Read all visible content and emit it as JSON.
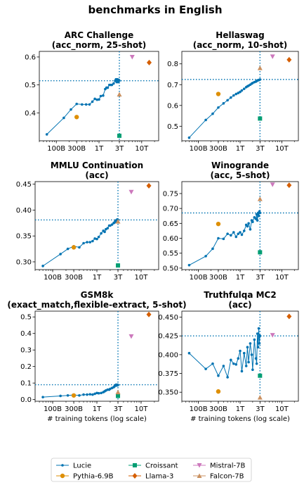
{
  "figure": {
    "title": "benchmarks in English",
    "xlabel": "# training tokens (log scale)",
    "x_ticks": [
      {
        "value": 100000000000.0,
        "label": "100B"
      },
      {
        "value": 300000000000.0,
        "label": "300B"
      },
      {
        "value": 1000000000000.0,
        "label": "1T"
      },
      {
        "value": 3000000000000.0,
        "label": "3T"
      },
      {
        "value": 10000000000000.0,
        "label": "10T"
      }
    ],
    "xlim": [
      40000000000.0,
      25000000000000.0
    ],
    "x_scale": "log",
    "reference_x": 3000000000000.0,
    "legend": {
      "placement": "bottom-center",
      "entries": [
        {
          "name": "Lucie",
          "color": "#0173b2",
          "marker": "dot-line"
        },
        {
          "name": "Pythia-6.9B",
          "color": "#de8f05",
          "marker": "circle"
        },
        {
          "name": "Croissant",
          "color": "#029e73",
          "marker": "square"
        },
        {
          "name": "Llama-3",
          "color": "#d55e00",
          "marker": "diamond"
        },
        {
          "name": "Mistral-7B",
          "color": "#cc78bc",
          "marker": "triangle-down"
        },
        {
          "name": "Falcon-7B",
          "color": "#ca9161",
          "marker": "triangle-up"
        }
      ]
    }
  },
  "chart_data": [
    {
      "type": "line",
      "title_lines": [
        "ARC Challenge",
        "(acc_norm, 25-shot)"
      ],
      "ylim": [
        0.3,
        0.62
      ],
      "yticks": [
        0.4,
        0.5,
        0.6
      ],
      "ytick_labels": [
        "0.4",
        "0.5",
        "0.6"
      ],
      "grid": false,
      "lucie": {
        "x": [
          60000000000.0,
          150000000000.0,
          220000000000.0,
          300000000000.0,
          400000000000.0,
          500000000000.0,
          600000000000.0,
          700000000000.0,
          800000000000.0,
          900000000000.0,
          1000000000000.0,
          1100000000000.0,
          1250000000000.0,
          1400000000000.0,
          1500000000000.0,
          1600000000000.0,
          1750000000000.0,
          1900000000000.0,
          2000000000000.0,
          2200000000000.0,
          2400000000000.0,
          2500000000000.0,
          2600000000000.0,
          2700000000000.0,
          2800000000000.0,
          2900000000000.0,
          3000000000000.0
        ],
        "y": [
          0.323,
          0.382,
          0.412,
          0.432,
          0.43,
          0.43,
          0.43,
          0.44,
          0.45,
          0.447,
          0.448,
          0.46,
          0.462,
          0.485,
          0.49,
          0.49,
          0.5,
          0.5,
          0.5,
          0.505,
          0.515,
          0.52,
          0.51,
          0.52,
          0.51,
          0.518,
          0.515
        ]
      },
      "reference_y": 0.515,
      "others": [
        {
          "name": "Pythia-6.9B",
          "x": 300000000000.0,
          "y": 0.385
        },
        {
          "name": "Croissant",
          "x": 3000000000000.0,
          "y": 0.318
        },
        {
          "name": "Llama-3",
          "x": 15000000000000.0,
          "y": 0.58
        },
        {
          "name": "Mistral-7B",
          "x": 6000000000000.0,
          "y": 0.6
        },
        {
          "name": "Falcon-7B",
          "x": 3000000000000.0,
          "y": 0.466
        }
      ]
    },
    {
      "type": "line",
      "title_lines": [
        "Hellaswag",
        "(acc_norm, 10-shot)"
      ],
      "ylim": [
        0.43,
        0.86
      ],
      "yticks": [
        0.5,
        0.6,
        0.7,
        0.8
      ],
      "ytick_labels": [
        "0.5",
        "0.6",
        "0.7",
        "0.8"
      ],
      "grid": false,
      "lucie": {
        "x": [
          60000000000.0,
          150000000000.0,
          220000000000.0,
          300000000000.0,
          400000000000.0,
          500000000000.0,
          600000000000.0,
          700000000000.0,
          800000000000.0,
          900000000000.0,
          1000000000000.0,
          1100000000000.0,
          1250000000000.0,
          1400000000000.0,
          1500000000000.0,
          1600000000000.0,
          1750000000000.0,
          1900000000000.0,
          2000000000000.0,
          2200000000000.0,
          2400000000000.0,
          2500000000000.0,
          2600000000000.0,
          2700000000000.0,
          2800000000000.0,
          2900000000000.0,
          3000000000000.0
        ],
        "y": [
          0.445,
          0.53,
          0.56,
          0.59,
          0.61,
          0.625,
          0.638,
          0.648,
          0.655,
          0.66,
          0.665,
          0.672,
          0.68,
          0.688,
          0.692,
          0.695,
          0.7,
          0.705,
          0.708,
          0.712,
          0.715,
          0.718,
          0.72,
          0.721,
          0.722,
          0.723,
          0.725
        ]
      },
      "reference_y": 0.725,
      "others": [
        {
          "name": "Pythia-6.9B",
          "x": 300000000000.0,
          "y": 0.655
        },
        {
          "name": "Croissant",
          "x": 3000000000000.0,
          "y": 0.537
        },
        {
          "name": "Llama-3",
          "x": 15000000000000.0,
          "y": 0.82
        },
        {
          "name": "Mistral-7B",
          "x": 6000000000000.0,
          "y": 0.835
        },
        {
          "name": "Falcon-7B",
          "x": 3000000000000.0,
          "y": 0.78
        }
      ]
    },
    {
      "type": "line",
      "title_lines": [
        "MMLU Continuation",
        "(acc)"
      ],
      "ylim": [
        0.285,
        0.455
      ],
      "yticks": [
        0.3,
        0.35,
        0.4,
        0.45
      ],
      "ytick_labels": [
        "0.30",
        "0.35",
        "0.40",
        "0.45"
      ],
      "grid": false,
      "lucie": {
        "x": [
          60000000000.0,
          150000000000.0,
          220000000000.0,
          300000000000.0,
          400000000000.0,
          500000000000.0,
          600000000000.0,
          700000000000.0,
          800000000000.0,
          900000000000.0,
          1000000000000.0,
          1100000000000.0,
          1250000000000.0,
          1400000000000.0,
          1500000000000.0,
          1600000000000.0,
          1750000000000.0,
          1900000000000.0,
          2000000000000.0,
          2200000000000.0,
          2400000000000.0,
          2500000000000.0,
          2600000000000.0,
          2700000000000.0,
          2800000000000.0,
          2900000000000.0,
          3000000000000.0
        ],
        "y": [
          0.292,
          0.315,
          0.325,
          0.33,
          0.328,
          0.336,
          0.338,
          0.338,
          0.34,
          0.345,
          0.344,
          0.348,
          0.355,
          0.36,
          0.358,
          0.363,
          0.365,
          0.37,
          0.37,
          0.372,
          0.375,
          0.376,
          0.378,
          0.38,
          0.378,
          0.382,
          0.381
        ]
      },
      "reference_y": 0.381,
      "others": [
        {
          "name": "Pythia-6.9B",
          "x": 300000000000.0,
          "y": 0.328
        },
        {
          "name": "Croissant",
          "x": 3000000000000.0,
          "y": 0.293
        },
        {
          "name": "Llama-3",
          "x": 15000000000000.0,
          "y": 0.447
        },
        {
          "name": "Mistral-7B",
          "x": 6000000000000.0,
          "y": 0.435
        },
        {
          "name": "Falcon-7B",
          "x": 3000000000000.0,
          "y": 0.378
        }
      ]
    },
    {
      "type": "line",
      "title_lines": [
        "Winogrande",
        "(acc, 5-shot)"
      ],
      "ylim": [
        0.495,
        0.79
      ],
      "yticks": [
        0.5,
        0.55,
        0.6,
        0.65,
        0.7,
        0.75
      ],
      "ytick_labels": [
        "0.50",
        "0.55",
        "0.60",
        "0.65",
        "0.70",
        "0.75"
      ],
      "grid": false,
      "lucie": {
        "x": [
          60000000000.0,
          150000000000.0,
          220000000000.0,
          300000000000.0,
          400000000000.0,
          500000000000.0,
          600000000000.0,
          700000000000.0,
          800000000000.0,
          900000000000.0,
          1000000000000.0,
          1100000000000.0,
          1250000000000.0,
          1400000000000.0,
          1500000000000.0,
          1600000000000.0,
          1750000000000.0,
          1900000000000.0,
          2000000000000.0,
          2200000000000.0,
          2400000000000.0,
          2500000000000.0,
          2600000000000.0,
          2700000000000.0,
          2800000000000.0,
          2900000000000.0,
          3000000000000.0
        ],
        "y": [
          0.51,
          0.54,
          0.565,
          0.6,
          0.598,
          0.615,
          0.61,
          0.62,
          0.605,
          0.615,
          0.62,
          0.612,
          0.625,
          0.645,
          0.64,
          0.65,
          0.63,
          0.66,
          0.655,
          0.67,
          0.665,
          0.68,
          0.66,
          0.685,
          0.675,
          0.69,
          0.685
        ]
      },
      "reference_y": 0.685,
      "others": [
        {
          "name": "Pythia-6.9B",
          "x": 300000000000.0,
          "y": 0.648
        },
        {
          "name": "Croissant",
          "x": 3000000000000.0,
          "y": 0.553
        },
        {
          "name": "Llama-3",
          "x": 15000000000000.0,
          "y": 0.778
        },
        {
          "name": "Mistral-7B",
          "x": 6000000000000.0,
          "y": 0.78
        },
        {
          "name": "Falcon-7B",
          "x": 3000000000000.0,
          "y": 0.732
        }
      ]
    },
    {
      "type": "line",
      "title_lines": [
        "GSM8k",
        "(exact_match,flexible-extract, 5-shot)"
      ],
      "ylim": [
        -0.01,
        0.535
      ],
      "yticks": [
        0.0,
        0.1,
        0.2,
        0.3,
        0.4,
        0.5
      ],
      "ytick_labels": [
        "0.0",
        "0.1",
        "0.2",
        "0.3",
        "0.4",
        "0.5"
      ],
      "grid": false,
      "lucie": {
        "x": [
          60000000000.0,
          150000000000.0,
          220000000000.0,
          300000000000.0,
          400000000000.0,
          500000000000.0,
          600000000000.0,
          700000000000.0,
          800000000000.0,
          900000000000.0,
          1000000000000.0,
          1100000000000.0,
          1250000000000.0,
          1400000000000.0,
          1500000000000.0,
          1600000000000.0,
          1750000000000.0,
          1900000000000.0,
          2000000000000.0,
          2200000000000.0,
          2400000000000.0,
          2500000000000.0,
          2600000000000.0,
          2700000000000.0,
          2800000000000.0,
          2900000000000.0,
          3000000000000.0
        ],
        "y": [
          0.015,
          0.022,
          0.025,
          0.028,
          0.025,
          0.03,
          0.03,
          0.032,
          0.03,
          0.035,
          0.04,
          0.038,
          0.04,
          0.045,
          0.05,
          0.055,
          0.06,
          0.06,
          0.065,
          0.07,
          0.075,
          0.08,
          0.085,
          0.09,
          0.085,
          0.09,
          0.088
        ]
      },
      "reference_y": 0.09,
      "others": [
        {
          "name": "Pythia-6.9B",
          "x": 300000000000.0,
          "y": 0.025
        },
        {
          "name": "Croissant",
          "x": 3000000000000.0,
          "y": 0.022
        },
        {
          "name": "Llama-3",
          "x": 15000000000000.0,
          "y": 0.515
        },
        {
          "name": "Mistral-7B",
          "x": 6000000000000.0,
          "y": 0.382
        },
        {
          "name": "Falcon-7B",
          "x": 3000000000000.0,
          "y": 0.045
        }
      ]
    },
    {
      "type": "line",
      "title_lines": [
        "Truthfulqa MC2",
        "(acc)"
      ],
      "ylim": [
        0.338,
        0.458
      ],
      "yticks": [
        0.35,
        0.375,
        0.4,
        0.425,
        0.45
      ],
      "ytick_labels": [
        "0.350",
        "0.375",
        "0.400",
        "0.425",
        "0.450"
      ],
      "grid": false,
      "lucie": {
        "x": [
          60000000000.0,
          150000000000.0,
          220000000000.0,
          300000000000.0,
          400000000000.0,
          500000000000.0,
          600000000000.0,
          700000000000.0,
          800000000000.0,
          900000000000.0,
          1000000000000.0,
          1100000000000.0,
          1250000000000.0,
          1400000000000.0,
          1500000000000.0,
          1600000000000.0,
          1750000000000.0,
          1900000000000.0,
          2000000000000.0,
          2200000000000.0,
          2400000000000.0,
          2500000000000.0,
          2600000000000.0,
          2700000000000.0,
          2800000000000.0,
          2900000000000.0,
          3000000000000.0
        ],
        "y": [
          0.402,
          0.381,
          0.388,
          0.372,
          0.385,
          0.37,
          0.393,
          0.388,
          0.387,
          0.395,
          0.405,
          0.378,
          0.402,
          0.385,
          0.41,
          0.39,
          0.415,
          0.4,
          0.38,
          0.42,
          0.395,
          0.388,
          0.428,
          0.41,
          0.435,
          0.415,
          0.425
        ]
      },
      "reference_y": 0.425,
      "others": [
        {
          "name": "Pythia-6.9B",
          "x": 300000000000.0,
          "y": 0.351
        },
        {
          "name": "Croissant",
          "x": 3000000000000.0,
          "y": 0.372
        },
        {
          "name": "Llama-3",
          "x": 15000000000000.0,
          "y": 0.451
        },
        {
          "name": "Mistral-7B",
          "x": 6000000000000.0,
          "y": 0.426
        },
        {
          "name": "Falcon-7B",
          "x": 3000000000000.0,
          "y": 0.343
        }
      ]
    }
  ]
}
